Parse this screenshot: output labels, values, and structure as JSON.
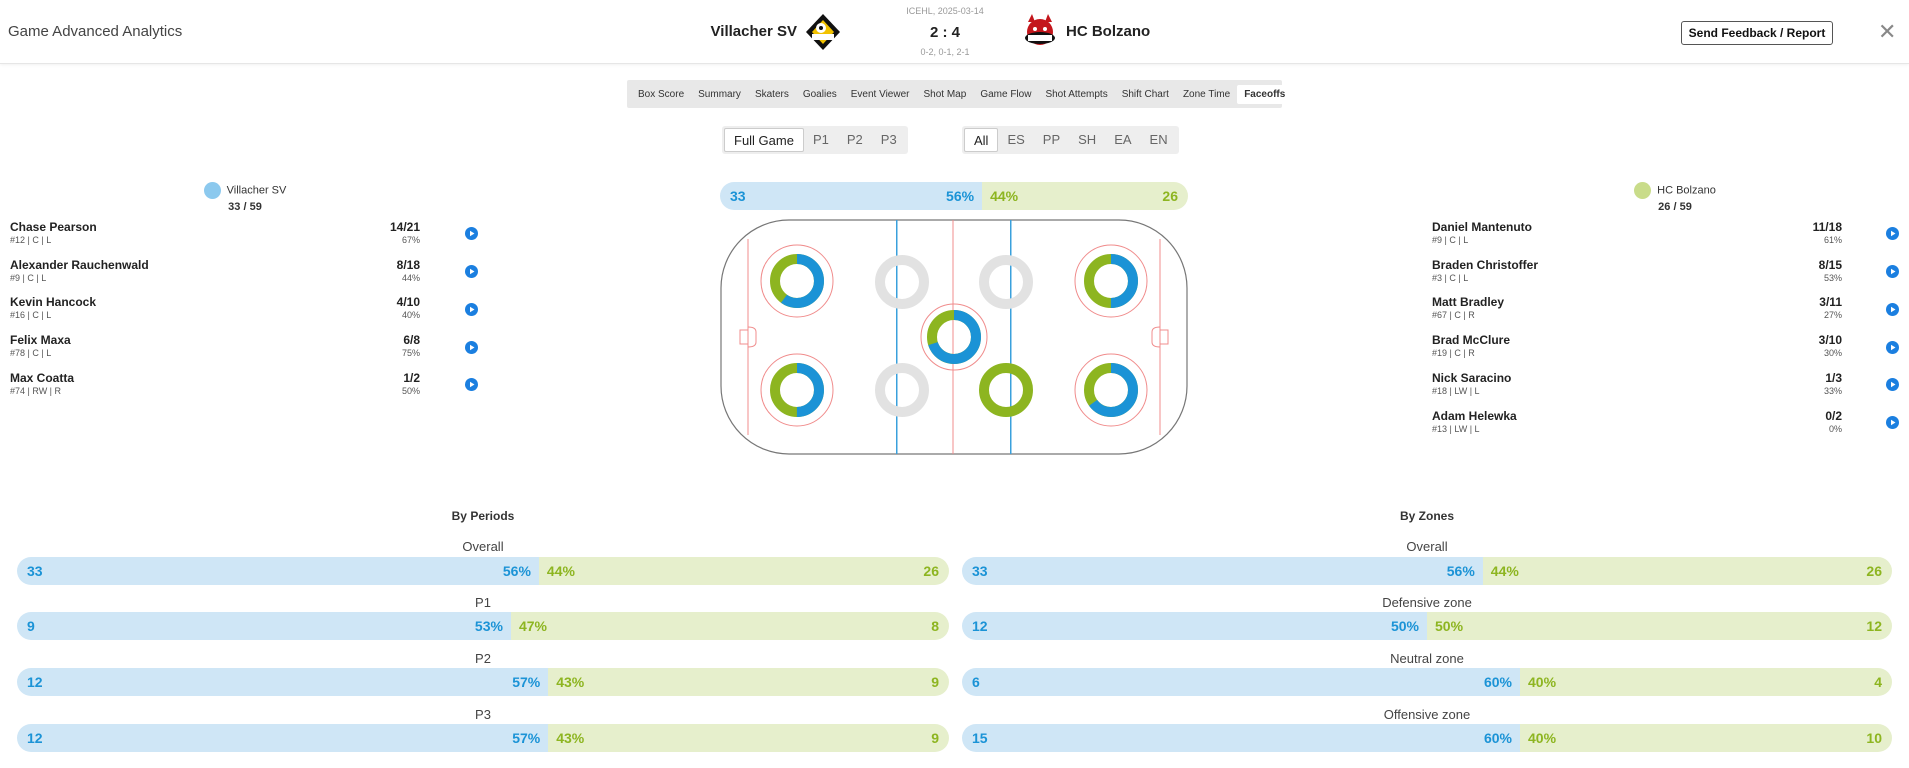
{
  "header": {
    "title": "Game Advanced Analytics",
    "league_date": "ICEHL, 2025-03-14",
    "score": "2 : 4",
    "period_scores": "0-2, 0-1, 2-1",
    "home_team": "Villacher SV",
    "away_team": "HC Bolzano",
    "feedback_label": "Send Feedback / Report",
    "close_symbol": "✕"
  },
  "tabs": [
    "Box Score",
    "Summary",
    "Skaters",
    "Goalies",
    "Event Viewer",
    "Shot Map",
    "Game Flow",
    "Shot Attempts",
    "Shift Chart",
    "Zone Time",
    "Faceoffs"
  ],
  "active_tab": "Faceoffs",
  "period_filter": [
    "Full Game",
    "P1",
    "P2",
    "P3"
  ],
  "active_period": "Full Game",
  "strength_filter": [
    "All",
    "ES",
    "PP",
    "SH",
    "EA",
    "EN"
  ],
  "active_strength": "All",
  "colors": {
    "home": "#1b93d6",
    "home_light": "#cfe6f6",
    "away": "#8db520",
    "away_light": "#e6efcc"
  },
  "home": {
    "name": "Villacher SV",
    "record": "33 / 59",
    "players": [
      {
        "name": "Chase Pearson",
        "info": "#12 | C | L",
        "ratio": "14/21",
        "pct": "67%"
      },
      {
        "name": "Alexander Rauchenwald",
        "info": "#9 | C | L",
        "ratio": "8/18",
        "pct": "44%"
      },
      {
        "name": "Kevin Hancock",
        "info": "#16 | C | L",
        "ratio": "4/10",
        "pct": "40%"
      },
      {
        "name": "Felix Maxa",
        "info": "#78 | C | L",
        "ratio": "6/8",
        "pct": "75%"
      },
      {
        "name": "Max Coatta",
        "info": "#74 | RW | R",
        "ratio": "1/2",
        "pct": "50%"
      }
    ]
  },
  "away": {
    "name": "HC Bolzano",
    "record": "26 / 59",
    "players": [
      {
        "name": "Daniel Mantenuto",
        "info": "#9 | C | L",
        "ratio": "11/18",
        "pct": "61%"
      },
      {
        "name": "Braden Christoffer",
        "info": "#3 | C | L",
        "ratio": "8/15",
        "pct": "53%"
      },
      {
        "name": "Matt Bradley",
        "info": "#67 | C | R",
        "ratio": "3/11",
        "pct": "27%"
      },
      {
        "name": "Brad McClure",
        "info": "#19 | C | R",
        "ratio": "3/10",
        "pct": "30%"
      },
      {
        "name": "Nick Saracino",
        "info": "#18 | LW | L",
        "ratio": "1/3",
        "pct": "33%"
      },
      {
        "name": "Adam Helewka",
        "info": "#13 | LW | L",
        "ratio": "0/2",
        "pct": "0%"
      }
    ]
  },
  "overall_bar": {
    "home": "33",
    "home_pct": "56%",
    "away_pct": "44%",
    "away": "26",
    "home_share": 0.56
  },
  "faceoff_dots": [
    {
      "spot": "home-end-top",
      "home_share": 0.6
    },
    {
      "spot": "home-end-bottom",
      "home_share": 0.5
    },
    {
      "spot": "neutral-home-top",
      "home_share": null
    },
    {
      "spot": "neutral-home-bottom",
      "home_share": null
    },
    {
      "spot": "center",
      "home_share": 0.7
    },
    {
      "spot": "neutral-away-top",
      "home_share": null
    },
    {
      "spot": "neutral-away-bottom",
      "home_share": 0.0
    },
    {
      "spot": "away-end-top",
      "home_share": 0.5
    },
    {
      "spot": "away-end-bottom",
      "home_share": 0.65
    }
  ],
  "by_periods": {
    "title": "By Periods",
    "rows": [
      {
        "label": "Overall",
        "home": "33",
        "home_pct": "56%",
        "away_pct": "44%",
        "away": "26",
        "home_share": 0.56
      },
      {
        "label": "P1",
        "home": "9",
        "home_pct": "53%",
        "away_pct": "47%",
        "away": "8",
        "home_share": 0.53
      },
      {
        "label": "P2",
        "home": "12",
        "home_pct": "57%",
        "away_pct": "43%",
        "away": "9",
        "home_share": 0.57
      },
      {
        "label": "P3",
        "home": "12",
        "home_pct": "57%",
        "away_pct": "43%",
        "away": "9",
        "home_share": 0.57
      }
    ]
  },
  "by_zones": {
    "title": "By Zones",
    "rows": [
      {
        "label": "Overall",
        "home": "33",
        "home_pct": "56%",
        "away_pct": "44%",
        "away": "26",
        "home_share": 0.56
      },
      {
        "label": "Defensive zone",
        "home": "12",
        "home_pct": "50%",
        "away_pct": "50%",
        "away": "12",
        "home_share": 0.5
      },
      {
        "label": "Neutral zone",
        "home": "6",
        "home_pct": "60%",
        "away_pct": "40%",
        "away": "4",
        "home_share": 0.6
      },
      {
        "label": "Offensive zone",
        "home": "15",
        "home_pct": "60%",
        "away_pct": "40%",
        "away": "10",
        "home_share": 0.6
      }
    ]
  }
}
